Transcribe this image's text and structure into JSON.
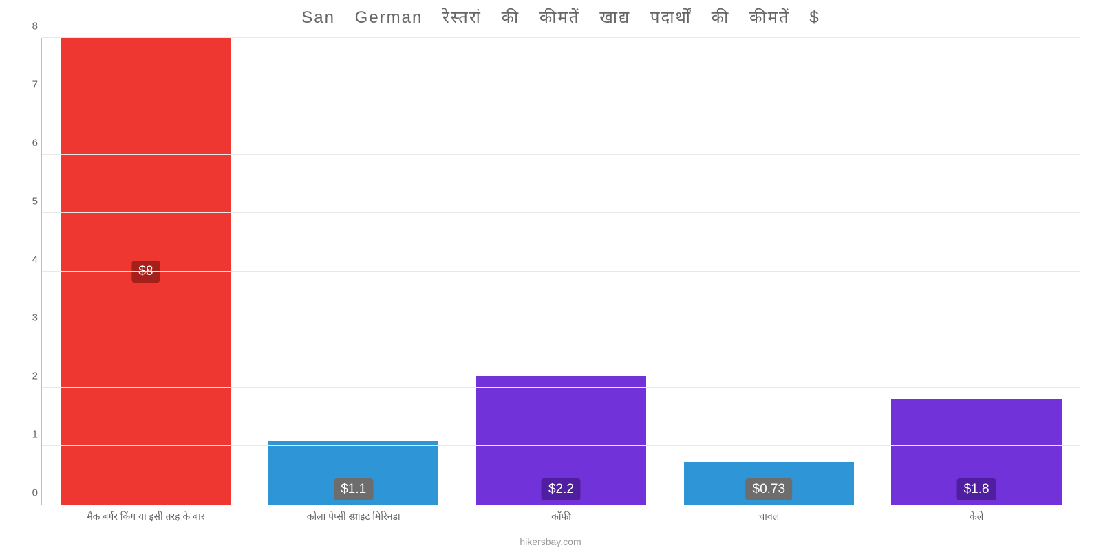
{
  "chart": {
    "type": "bar",
    "title": "San German रेस्तरां की कीमतें खाद्य पदार्थों की कीमतें $",
    "title_fontsize": 24,
    "title_color": "#666666",
    "background_color": "#ffffff",
    "grid_color": "#e8e8e8",
    "axis_color": "#c0c0c0",
    "label_color": "#666666",
    "label_fontsize": 14,
    "ylim": [
      0,
      8
    ],
    "ytick_step": 1,
    "yticks": [
      "0",
      "1",
      "2",
      "3",
      "4",
      "5",
      "6",
      "7",
      "8"
    ],
    "bar_width": 0.82,
    "categories": [
      "मैक बर्गर किंग या इसी तरह के बार",
      "कोला पेप्सी स्प्राइट मिरिनडा",
      "कॉफी",
      "चावल",
      "केले"
    ],
    "values": [
      8,
      1.1,
      2.2,
      0.73,
      1.8
    ],
    "display_values": [
      "$8",
      "$1.1",
      "$2.2",
      "$0.73",
      "$1.8"
    ],
    "bar_colors": [
      "#ee3730",
      "#2e96d7",
      "#7232d9",
      "#2e96d7",
      "#7232d9"
    ],
    "badge_colors": [
      "#a51f1b",
      "#6d6d6d",
      "#4f1fa0",
      "#6d6d6d",
      "#4f1fa0"
    ],
    "footer": "hikersbay.com",
    "footer_color": "#999999"
  }
}
